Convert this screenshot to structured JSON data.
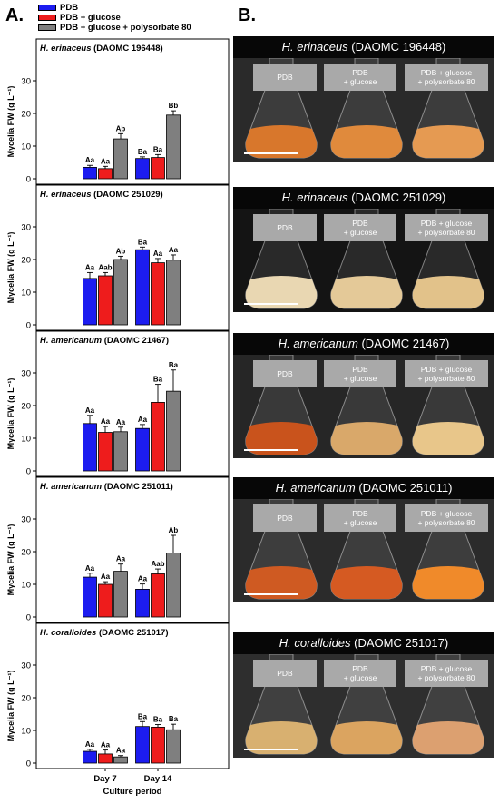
{
  "panel_labels": {
    "a": "A.",
    "b": "B."
  },
  "legend": [
    {
      "label": "PDB",
      "color": "#1c1cf0"
    },
    {
      "label": "PDB + glucose",
      "color": "#ee1c1c"
    },
    {
      "label": "PDB + glucose + polysorbate 80",
      "color": "#7f7f7f"
    }
  ],
  "chart_data": [
    {
      "type": "bar",
      "title_italic": "H. erinaceus",
      "title_rest": " (DAOMC 196448)",
      "categories": [
        "Day 7",
        "Day 14"
      ],
      "ylabel": "Mycelia FW (g L⁻¹)",
      "xlabel": "Culture period",
      "ylim": [
        0,
        35
      ],
      "yticks": [
        0,
        10,
        20,
        30
      ],
      "series": [
        {
          "name": "PDB",
          "values": [
            3.5,
            6.2
          ],
          "errors": [
            0.6,
            0.5
          ],
          "labels": [
            "Aa",
            "Ba"
          ]
        },
        {
          "name": "PDB + glucose",
          "values": [
            3.1,
            6.5
          ],
          "errors": [
            0.7,
            0.9
          ],
          "labels": [
            "Aa",
            "Ba"
          ]
        },
        {
          "name": "PDB + glucose + polysorbate 80",
          "values": [
            12.2,
            19.5
          ],
          "errors": [
            1.6,
            1.3
          ],
          "labels": [
            "Ab",
            "Bb"
          ]
        }
      ]
    },
    {
      "type": "bar",
      "title_italic": "H. erinaceus",
      "title_rest": " (DAOMC 251029)",
      "categories": [
        "Day 7",
        "Day 14"
      ],
      "ylabel": "Mycelia FW (g L⁻¹)",
      "xlabel": "Culture period",
      "ylim": [
        0,
        35
      ],
      "yticks": [
        0,
        10,
        20,
        30
      ],
      "series": [
        {
          "name": "PDB",
          "values": [
            14.2,
            23.0
          ],
          "errors": [
            1.8,
            0.8
          ],
          "labels": [
            "Aa",
            "Ba"
          ]
        },
        {
          "name": "PDB + glucose",
          "values": [
            15.0,
            19.0
          ],
          "errors": [
            1.0,
            1.3
          ],
          "labels": [
            "Aab",
            "Aa"
          ]
        },
        {
          "name": "PDB + glucose + polysorbate 80",
          "values": [
            20.0,
            19.8
          ],
          "errors": [
            1.0,
            1.6
          ],
          "labels": [
            "Ab",
            "Aa"
          ]
        }
      ]
    },
    {
      "type": "bar",
      "title_italic": "H. americanum",
      "title_rest": " (DAOMC 21467)",
      "categories": [
        "Day 7",
        "Day 14"
      ],
      "ylabel": "Mycelia FW (g L⁻¹)",
      "xlabel": "Culture period",
      "ylim": [
        0,
        35
      ],
      "yticks": [
        0,
        10,
        20,
        30
      ],
      "series": [
        {
          "name": "PDB",
          "values": [
            14.5,
            13.0
          ],
          "errors": [
            2.5,
            1.2
          ],
          "labels": [
            "Aa",
            "Aa"
          ]
        },
        {
          "name": "PDB + glucose",
          "values": [
            11.8,
            21.0
          ],
          "errors": [
            1.8,
            5.5
          ],
          "labels": [
            "Aa",
            "Ba"
          ]
        },
        {
          "name": "PDB + glucose + polysorbate 80",
          "values": [
            12.0,
            24.4
          ],
          "errors": [
            1.4,
            6.5
          ],
          "labels": [
            "Aa",
            "Ba"
          ]
        }
      ]
    },
    {
      "type": "bar",
      "title_italic": "H. americanum",
      "title_rest": " (DAOMC 251011)",
      "categories": [
        "Day 7",
        "Day 14"
      ],
      "ylabel": "Mycelia FW (g L⁻¹)",
      "xlabel": "Culture period",
      "ylim": [
        0,
        35
      ],
      "yticks": [
        0,
        10,
        20,
        30
      ],
      "series": [
        {
          "name": "PDB",
          "values": [
            12.2,
            8.5
          ],
          "errors": [
            1.2,
            1.6
          ],
          "labels": [
            "Aa",
            "Aa"
          ]
        },
        {
          "name": "PDB + glucose",
          "values": [
            10.0,
            13.2
          ],
          "errors": [
            0.8,
            1.5
          ],
          "labels": [
            "Aa",
            "Aab"
          ]
        },
        {
          "name": "PDB + glucose + polysorbate 80",
          "values": [
            14.0,
            19.6
          ],
          "errors": [
            2.2,
            5.4
          ],
          "labels": [
            "Aa",
            "Ab"
          ]
        }
      ]
    },
    {
      "type": "bar",
      "title_italic": "H. coralloides",
      "title_rest": " (DAOMC 251017)",
      "categories": [
        "Day 7",
        "Day 14"
      ],
      "ylabel": "Mycelia FW (g L⁻¹)",
      "xlabel": "Culture period",
      "ylim": [
        0,
        35
      ],
      "yticks": [
        0,
        10,
        20,
        30
      ],
      "series": [
        {
          "name": "PDB",
          "values": [
            3.6,
            11.2
          ],
          "errors": [
            0.6,
            1.5
          ],
          "labels": [
            "Aa",
            "Ba"
          ]
        },
        {
          "name": "PDB + glucose",
          "values": [
            2.8,
            11.0
          ],
          "errors": [
            1.2,
            0.8
          ],
          "labels": [
            "Aa",
            "Ba"
          ]
        },
        {
          "name": "PDB + glucose + polysorbate 80",
          "values": [
            1.9,
            10.2
          ],
          "errors": [
            0.4,
            1.7
          ],
          "labels": [
            "Aa",
            "Ba"
          ]
        }
      ]
    }
  ],
  "photos": [
    {
      "title_italic": "H. erinaceus",
      "title_rest": " (DAOMC 196448)",
      "labels": [
        "PDB",
        "PDB\n+ glucose",
        "PDB + glucose\n+ polysorbate 80"
      ],
      "liquid": [
        "#d8772c",
        "#e08a3c",
        "#e59a52"
      ],
      "bg": "#2a2a2a"
    },
    {
      "title_italic": "H. erinaceus",
      "title_rest": " (DAOMC 251029)",
      "labels": [
        "PDB",
        "PDB\n+ glucose",
        "PDB + glucose\n+ polysorbate 80"
      ],
      "liquid": [
        "#e9d7b2",
        "#e4c998",
        "#e2c28a"
      ],
      "bg": "#141414"
    },
    {
      "title_italic": "H. americanum",
      "title_rest": " (DAOMC 21467)",
      "labels": [
        "PDB",
        "PDB\n+ glucose",
        "PDB + glucose\n+ polysorbate 80"
      ],
      "liquid": [
        "#c9531c",
        "#d9a86a",
        "#e8c68a"
      ],
      "bg": "#262626"
    },
    {
      "title_italic": "H. americanum",
      "title_rest": " (DAOMC 251011)",
      "labels": [
        "PDB",
        "PDB\n+ glucose",
        "PDB + glucose\n+ polysorbate 80"
      ],
      "liquid": [
        "#cf5a22",
        "#d55a22",
        "#f08a2a"
      ],
      "bg": "#2b2b2b"
    },
    {
      "title_italic": "H. coralloides",
      "title_rest": " (DAOMC 251017)",
      "labels": [
        "PDB",
        "PDB\n+ glucose",
        "PDB + glucose\n+ polysorbate 80"
      ],
      "liquid": [
        "#d8b070",
        "#dba460",
        "#dca070"
      ],
      "bg": "#2e2e2e"
    }
  ]
}
